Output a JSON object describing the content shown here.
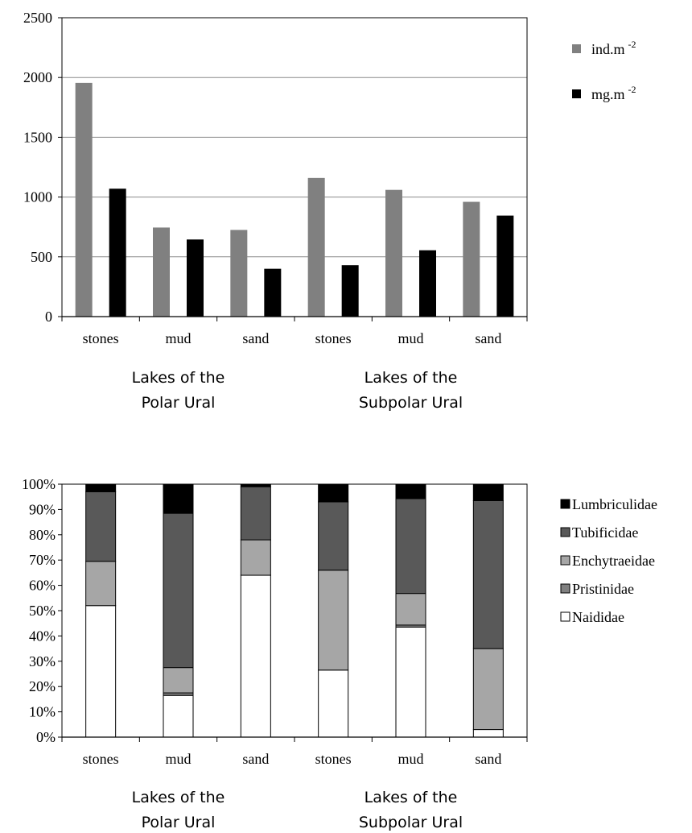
{
  "chart_data": [
    {
      "type": "bar",
      "categories": [
        "stones",
        "mud",
        "sand",
        "stones",
        "mud",
        "sand"
      ],
      "groups": [
        {
          "label_line1": "Lakes of the",
          "label_line2": "Polar Ural"
        },
        {
          "label_line1": "Lakes of the",
          "label_line2": "Subpolar Ural"
        }
      ],
      "series": [
        {
          "name": "ind.m",
          "name_sup": "-2",
          "color": "#808080",
          "values": [
            1955,
            745,
            725,
            1160,
            1060,
            960
          ]
        },
        {
          "name": "mg.m",
          "name_sup": "-2",
          "color": "#000000",
          "values": [
            1070,
            645,
            400,
            430,
            555,
            845
          ]
        }
      ],
      "ylim": [
        0,
        2500
      ],
      "yticks": [
        "0",
        "500",
        "1000",
        "1500",
        "2000",
        "2500"
      ],
      "grid": true,
      "legend_position": "right"
    },
    {
      "type": "bar",
      "stacked": true,
      "categories": [
        "stones",
        "mud",
        "sand",
        "stones",
        "mud",
        "sand"
      ],
      "groups": [
        {
          "label_line1": "Lakes of the",
          "label_line2": "Polar Ural"
        },
        {
          "label_line1": "Lakes of the",
          "label_line2": "Subpolar Ural"
        }
      ],
      "series": [
        {
          "name": "Naididae",
          "color": "#ffffff",
          "values": [
            52,
            16.5,
            64,
            26.5,
            43.5,
            3
          ]
        },
        {
          "name": "Pristinidae",
          "color": "#808080",
          "values": [
            0,
            1,
            0,
            0,
            0.8,
            0
          ]
        },
        {
          "name": "Enchytraeidae",
          "color": "#a6a6a6",
          "values": [
            17.5,
            10,
            14,
            39.5,
            12.5,
            32
          ]
        },
        {
          "name": "Tubificidae",
          "color": "#595959",
          "values": [
            27.5,
            61,
            21,
            27,
            37.5,
            58.5
          ]
        },
        {
          "name": "Lumbriculidae",
          "color": "#000000",
          "values": [
            3,
            11.5,
            1,
            7,
            5.7,
            6.5
          ]
        }
      ],
      "legend_order": [
        "Lumbriculidae",
        "Tubificidae",
        "Enchytraeidae",
        "Pristinidae",
        "Naididae"
      ],
      "ylim": [
        0,
        100
      ],
      "yticks": [
        "0%",
        "10%",
        "20%",
        "30%",
        "40%",
        "50%",
        "60%",
        "70%",
        "80%",
        "90%",
        "100%"
      ],
      "grid": false,
      "legend_position": "right"
    }
  ]
}
